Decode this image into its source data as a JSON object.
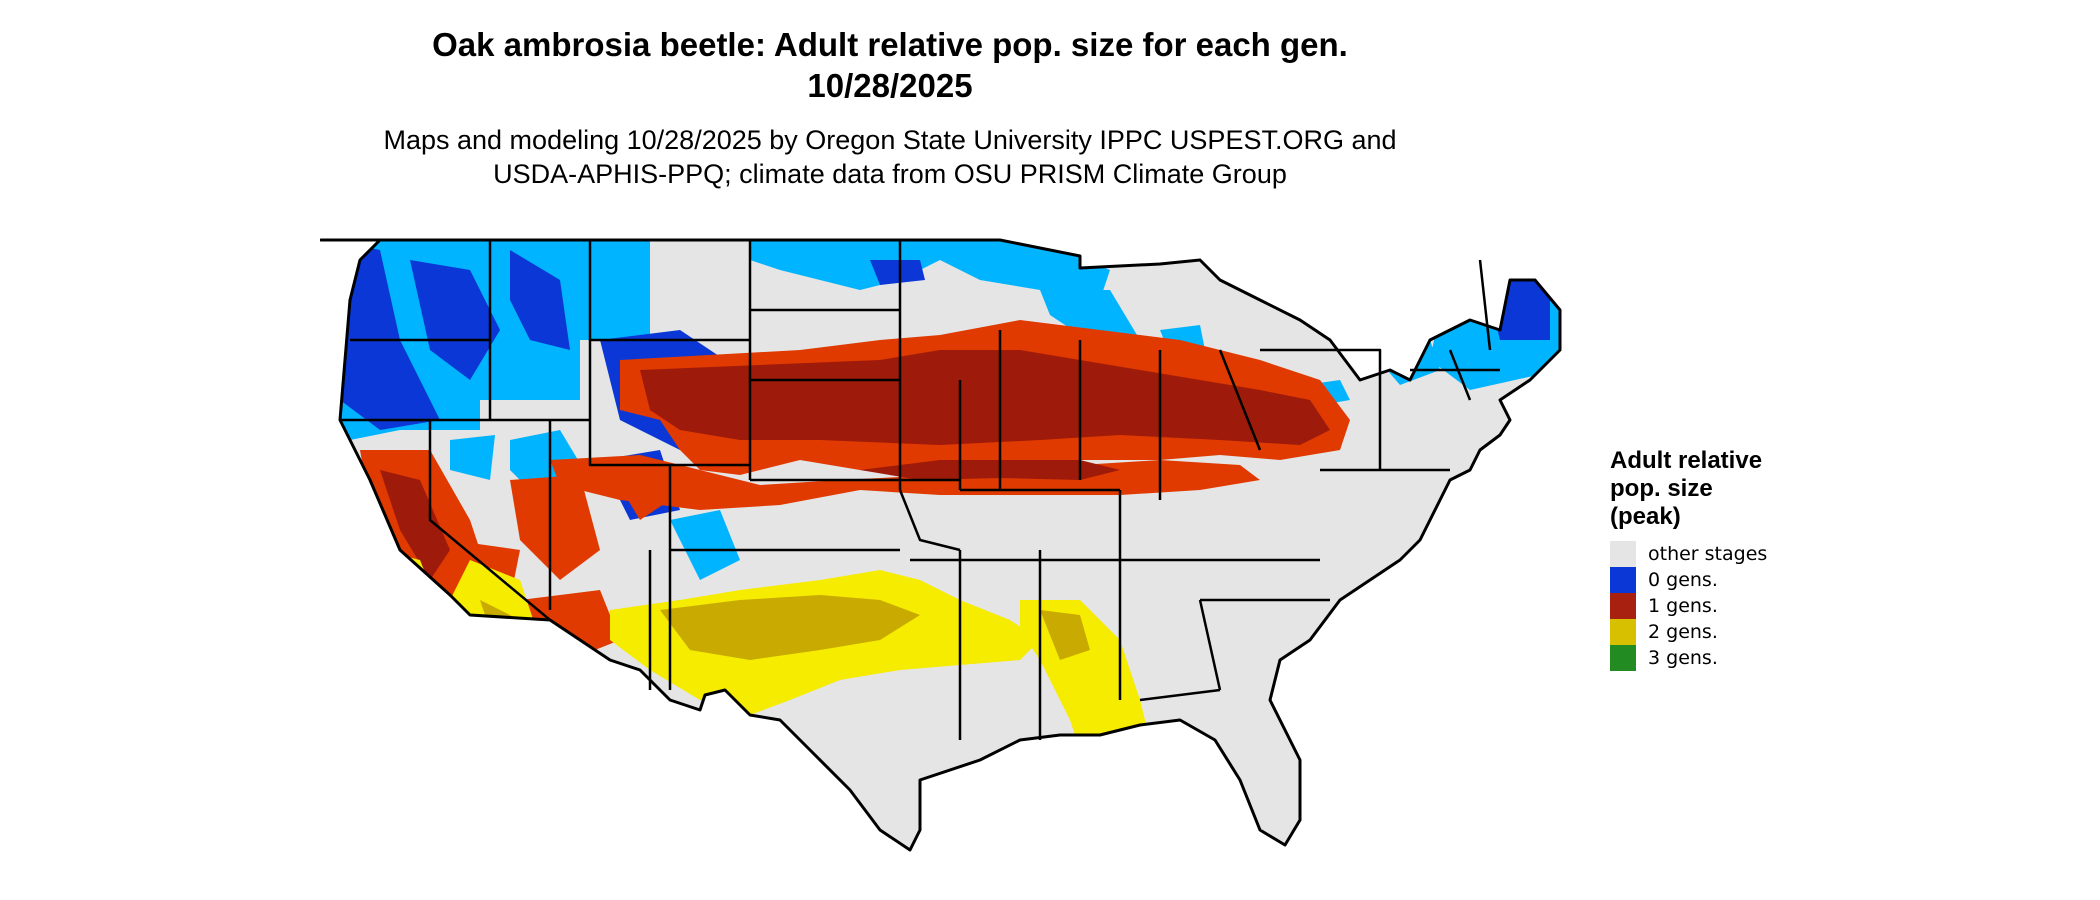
{
  "map": {
    "title_line1": "Oak ambrosia beetle: Adult relative pop. size for each gen.",
    "title_line2": "10/28/2025",
    "subtitle_line1": "Maps and modeling 10/28/2025 by Oregon State University IPPC USPEST.ORG and",
    "subtitle_line2": "USDA-APHIS-PPQ; climate data from OSU PRISM Climate Group"
  },
  "legend": {
    "title": "Adult relative\npop. size\n(peak)",
    "items": [
      {
        "label": "other stages",
        "color": "#e5e5e5"
      },
      {
        "label": "0 gens.",
        "color": "#0a37d6"
      },
      {
        "label": "1 gens.",
        "color": "#a8200f"
      },
      {
        "label": "2 gens.",
        "color": "#d6c000"
      },
      {
        "label": "3 gens.",
        "color": "#228b22"
      }
    ]
  },
  "colors": {
    "light_blue": "#00b4ff",
    "blue": "#0a37d6",
    "dark_red": "#9e1a0a",
    "orange_red": "#e03a00",
    "yellow": "#f5ec00",
    "olive_yellow": "#c8aa00",
    "gray": "#e5e5e5",
    "border": "#000000"
  }
}
